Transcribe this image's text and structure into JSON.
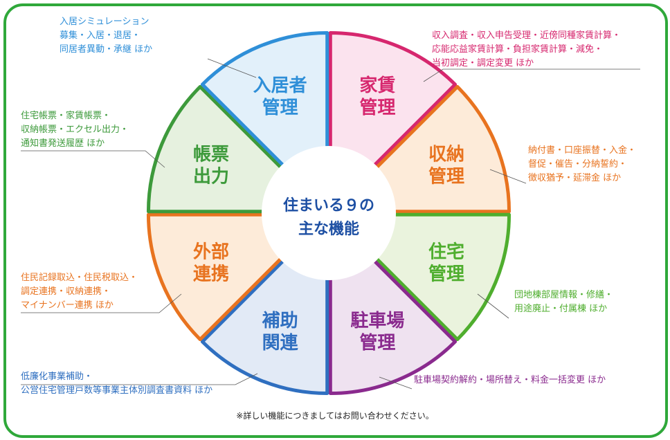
{
  "center": {
    "line1": "住まいる９の",
    "line2": "主な機能"
  },
  "segments": [
    {
      "key": "kyoju",
      "title1": "入居者",
      "title2": "管理",
      "color": "#2f8fd8",
      "fill": "#e2f0fa",
      "lines": [
        "入居シミュレーション",
        "募集・入居・退居・",
        "同居者異動・承継 ほか"
      ]
    },
    {
      "key": "yachin",
      "title1": "家賃",
      "title2": "管理",
      "color": "#d6276e",
      "fill": "#fbe3ee",
      "lines": [
        "収入調査・収入申告受理・近傍同種家賃計算・",
        "応能応益家賃計算・負担家賃計算・減免・",
        "当初調定・調定変更 ほか"
      ]
    },
    {
      "key": "shuno",
      "title1": "収納",
      "title2": "管理",
      "color": "#e8731f",
      "fill": "#fdebd9",
      "lines": [
        "納付書・口座振替・入金・",
        "督促・催告・分納誓約・",
        "徴収猶予・延滞金 ほか"
      ]
    },
    {
      "key": "jutaku",
      "title1": "住宅",
      "title2": "管理",
      "color": "#4fae2e",
      "fill": "#eaf3dd",
      "lines": [
        "団地棟部屋情報・修繕・",
        "用途廃止・付属棟 ほか"
      ]
    },
    {
      "key": "chusha",
      "title1": "駐車場",
      "title2": "管理",
      "color": "#8a2a8e",
      "fill": "#efe2f0",
      "lines": [
        "駐車場契約解約・場所替え・料金一括変更 ほか"
      ]
    },
    {
      "key": "hojo",
      "title1": "補助",
      "title2": "関連",
      "color": "#2f6fc0",
      "fill": "#e2eaf6",
      "lines": [
        "低廉化事業補助・",
        "公営住宅管理戸数等事業主体別調査書資料 ほか"
      ]
    },
    {
      "key": "gaibu",
      "title1": "外部",
      "title2": "連携",
      "color": "#e8731f",
      "fill": "#fdebd9",
      "lines": [
        "住民記録取込・住民税取込・",
        "調定連携・収納連携・",
        "マイナンバー連携 ほか"
      ]
    },
    {
      "key": "chohyo",
      "title1": "帳票",
      "title2": "出力",
      "color": "#3d9a3b",
      "fill": "#e6f1df",
      "lines": [
        "住宅帳票・家賃帳票・",
        "収納帳票・エクセル出力・",
        "通知書発送履歴 ほか"
      ]
    }
  ],
  "note": "※詳しい機能につきましてはお問い合わせください。"
}
